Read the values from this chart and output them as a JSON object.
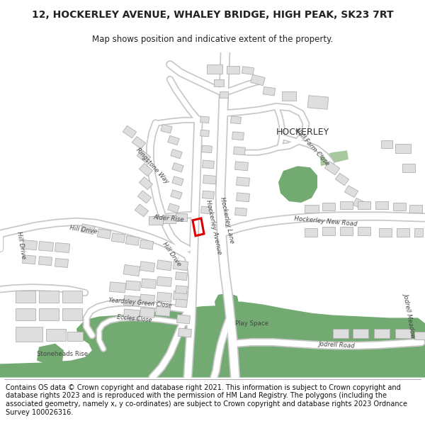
{
  "title_line1": "12, HOCKERLEY AVENUE, WHALEY BRIDGE, HIGH PEAK, SK23 7RT",
  "title_line2": "Map shows position and indicative extent of the property.",
  "footer_text": "Contains OS data © Crown copyright and database right 2021. This information is subject to Crown copyright and database rights 2023 and is reproduced with the permission of HM Land Registry. The polygons (including the associated geometry, namely x, y co-ordinates) are subject to Crown copyright and database rights 2023 Ordnance Survey 100026316.",
  "map_bg": "#f2f2f2",
  "road_color": "#ffffff",
  "road_edge_color": "#c8c8c8",
  "building_color": "#dedede",
  "building_edge_color": "#b0b0b0",
  "green_color": "#72aa72",
  "green_light_color": "#a8c8a0",
  "highlight_color": "#dd0000",
  "title_fontsize": 10,
  "subtitle_fontsize": 8.5,
  "footer_fontsize": 7.0,
  "label_fontsize": 6.5,
  "label_color": "#444444"
}
